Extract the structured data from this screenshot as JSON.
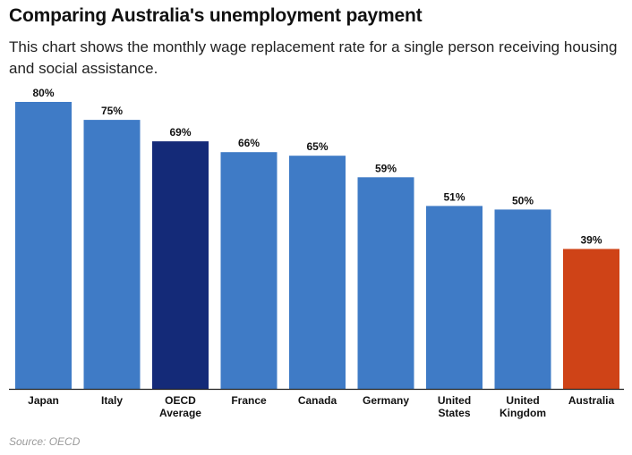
{
  "title": "Comparing Australia's unemployment payment",
  "subtitle": "This chart shows the monthly wage replacement rate for a single person receiving housing and social assistance.",
  "source": "Source: OECD",
  "chart_data": {
    "type": "bar",
    "title": "Comparing Australia's unemployment payment",
    "subtitle": "This chart shows the monthly wage replacement rate for a single person receiving housing and social assistance.",
    "categories": [
      [
        "Japan"
      ],
      [
        "Italy"
      ],
      [
        "OECD",
        "Average"
      ],
      [
        "France"
      ],
      [
        "Canada"
      ],
      [
        "Germany"
      ],
      [
        "United",
        "States"
      ],
      [
        "United",
        "Kingdom"
      ],
      [
        "Australia"
      ]
    ],
    "values": [
      80,
      75,
      69,
      66,
      65,
      59,
      51,
      50,
      39
    ],
    "data_labels": [
      "80%",
      "75%",
      "69%",
      "66%",
      "65%",
      "59%",
      "51%",
      "50%",
      "39%"
    ],
    "unit": "%",
    "ylim": [
      0,
      80
    ],
    "grid": false,
    "xlabel": "",
    "ylabel": "",
    "colors": {
      "default": "#3f7bc6",
      "oecd": "#142a78",
      "australia": "#cf4317",
      "axis": "#222222",
      "label": "#111111"
    },
    "bar_colors": [
      "default",
      "default",
      "oecd",
      "default",
      "default",
      "default",
      "default",
      "default",
      "australia"
    ]
  }
}
